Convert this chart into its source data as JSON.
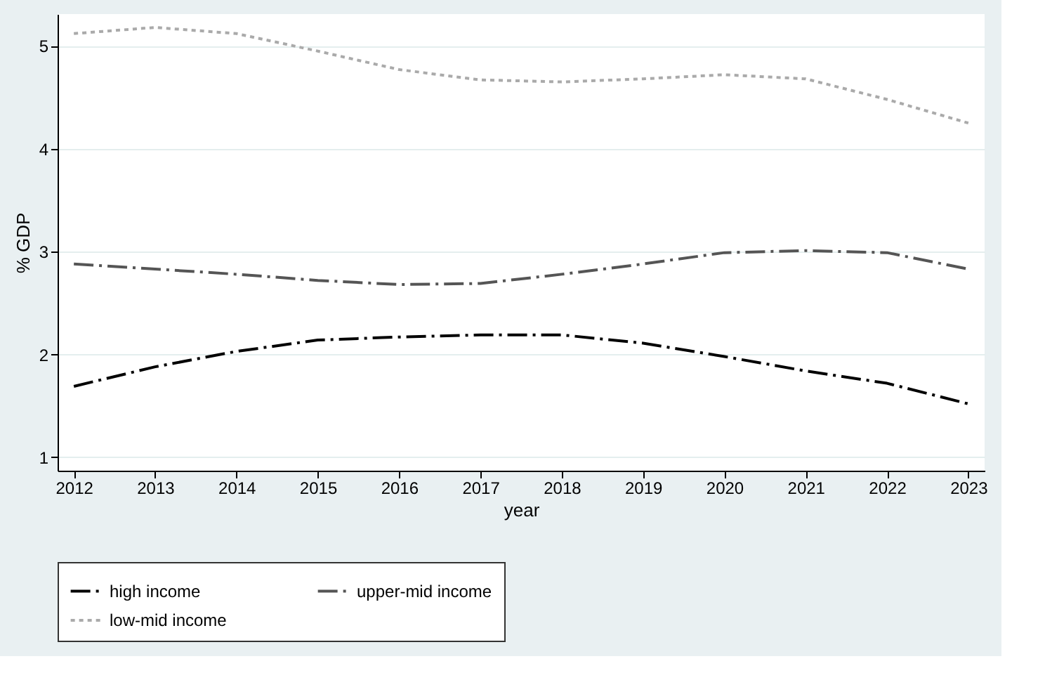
{
  "chart_data": {
    "type": "line",
    "xlabel": "year",
    "ylabel": "% GDP",
    "x": [
      2012,
      2013,
      2014,
      2015,
      2016,
      2017,
      2018,
      2019,
      2020,
      2021,
      2022,
      2023
    ],
    "xlim": [
      2011.8,
      2023.2
    ],
    "xticks": [
      2012,
      2013,
      2014,
      2015,
      2016,
      2017,
      2018,
      2019,
      2020,
      2021,
      2022,
      2023
    ],
    "ylim": [
      0.87,
      5.31
    ],
    "yticks": [
      1,
      2,
      3,
      4,
      5
    ],
    "grid": "y",
    "legend": "bottom",
    "marker": "none",
    "series": [
      {
        "name": "high income",
        "color": "#000000",
        "line_style": "dashed",
        "values": [
          1.69,
          1.88,
          2.03,
          2.14,
          2.17,
          2.19,
          2.19,
          2.11,
          1.98,
          1.84,
          1.72,
          1.52
        ]
      },
      {
        "name": "upper-mid income",
        "color": "#555555",
        "line_style": "dashed",
        "values": [
          2.88,
          2.83,
          2.78,
          2.72,
          2.68,
          2.69,
          2.78,
          2.88,
          2.99,
          3.01,
          2.99,
          2.83
        ]
      },
      {
        "name": "low-mid income",
        "color": "#aaaaaa",
        "line_style": "dotted",
        "values": [
          5.12,
          5.18,
          5.12,
          4.95,
          4.77,
          4.67,
          4.65,
          4.68,
          4.72,
          4.68,
          4.48,
          4.25
        ]
      }
    ]
  }
}
